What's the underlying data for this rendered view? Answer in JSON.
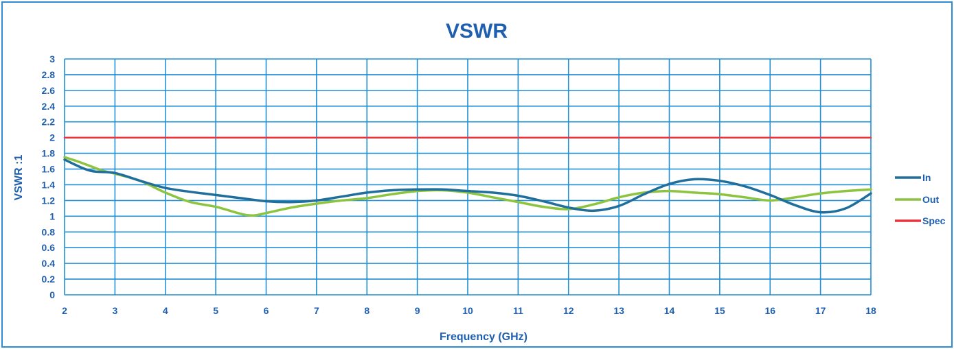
{
  "chart_data": {
    "type": "line",
    "title": "VSWR",
    "xlabel": "Frequency (GHz)",
    "ylabel": "VSWR :1",
    "xlim": [
      2,
      18
    ],
    "ylim": [
      0,
      3
    ],
    "x_ticks": [
      "2",
      "3",
      "4",
      "5",
      "6",
      "7",
      "8",
      "9",
      "10",
      "11",
      "12",
      "13",
      "14",
      "15",
      "16",
      "17",
      "18"
    ],
    "y_ticks": [
      "0",
      "0.2",
      "0.4",
      "0.6",
      "0.8",
      "1",
      "1.2",
      "1.4",
      "1.6",
      "1.8",
      "2",
      "2.2",
      "2.4",
      "2.6",
      "2.8",
      "3"
    ],
    "grid": true,
    "legend_position": "right",
    "series": [
      {
        "name": "In",
        "color": "#1f6e9c",
        "x": [
          2,
          2.5,
          3,
          3.5,
          4,
          4.5,
          5,
          5.5,
          6,
          6.5,
          7,
          7.5,
          8,
          8.5,
          9,
          9.5,
          10,
          10.5,
          11,
          11.5,
          12,
          12.5,
          13,
          13.5,
          14,
          14.5,
          15,
          15.5,
          16,
          16.5,
          17,
          17.5,
          18
        ],
        "values": [
          1.72,
          1.58,
          1.55,
          1.45,
          1.36,
          1.31,
          1.27,
          1.23,
          1.19,
          1.18,
          1.2,
          1.25,
          1.3,
          1.33,
          1.34,
          1.34,
          1.32,
          1.3,
          1.26,
          1.19,
          1.11,
          1.07,
          1.13,
          1.28,
          1.41,
          1.47,
          1.45,
          1.38,
          1.27,
          1.14,
          1.05,
          1.1,
          1.29
        ]
      },
      {
        "name": "Out",
        "color": "#8cc43f",
        "x": [
          2,
          2.25,
          2.5,
          2.75,
          3,
          3.5,
          4,
          4.5,
          5,
          5.5,
          5.75,
          6,
          6.5,
          7,
          7.5,
          8,
          8.5,
          9,
          9.5,
          10,
          10.5,
          11,
          11.5,
          12,
          12.5,
          13,
          13.5,
          14,
          14.5,
          15,
          15.5,
          16,
          16.5,
          17,
          17.5,
          18
        ],
        "values": [
          1.75,
          1.7,
          1.64,
          1.58,
          1.54,
          1.45,
          1.3,
          1.18,
          1.12,
          1.03,
          1.01,
          1.04,
          1.11,
          1.16,
          1.2,
          1.23,
          1.28,
          1.32,
          1.33,
          1.3,
          1.24,
          1.18,
          1.12,
          1.09,
          1.15,
          1.24,
          1.3,
          1.32,
          1.3,
          1.28,
          1.24,
          1.2,
          1.24,
          1.29,
          1.32,
          1.34
        ]
      },
      {
        "name": "Spec",
        "color": "#e8343a",
        "x": [
          2,
          18
        ],
        "values": [
          2,
          2
        ]
      }
    ],
    "colors": {
      "frame": "#2e8bd6",
      "grid": "#1f8fd6",
      "text": "#1f5fb0"
    }
  }
}
